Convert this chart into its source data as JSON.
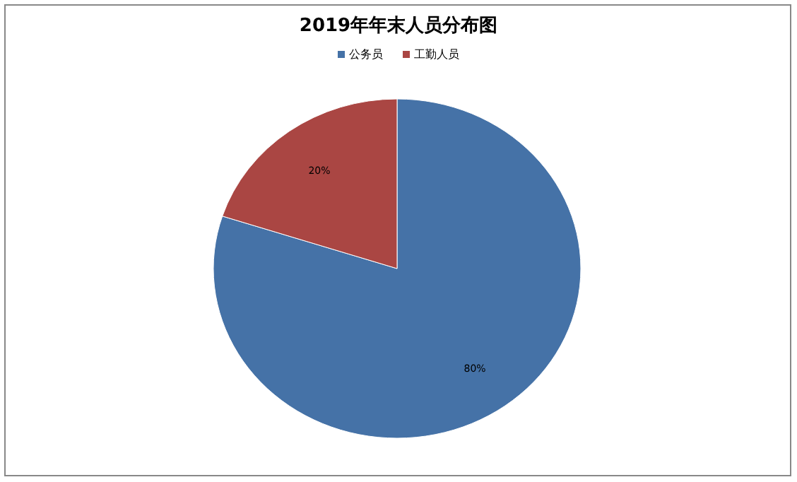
{
  "chart_data": {
    "type": "pie",
    "title": "2019年年末人员分布图",
    "categories": [
      "公务员",
      "工勤人员"
    ],
    "values": [
      80,
      20
    ],
    "colors": [
      "#4572a7",
      "#aa4643"
    ],
    "value_labels": [
      "80%",
      "20%"
    ],
    "legend": "top"
  }
}
